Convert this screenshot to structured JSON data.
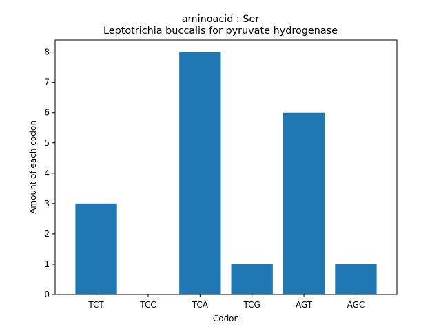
{
  "chart_data": {
    "type": "bar",
    "title_line1": "aminoacid : Ser",
    "title_line2": "Leptotrichia buccalis for pyruvate hydrogenase",
    "xlabel": "Codon",
    "ylabel": "Amount of each codon",
    "categories": [
      "TCT",
      "TCC",
      "TCA",
      "TCG",
      "AGT",
      "AGC"
    ],
    "values": [
      3,
      0,
      8,
      1,
      6,
      1
    ],
    "ylim": [
      0,
      8.4
    ],
    "yticks": [
      0,
      1,
      2,
      3,
      4,
      5,
      6,
      7,
      8
    ],
    "bar_color": "#1f77b4",
    "grid": false,
    "legend": "none"
  }
}
